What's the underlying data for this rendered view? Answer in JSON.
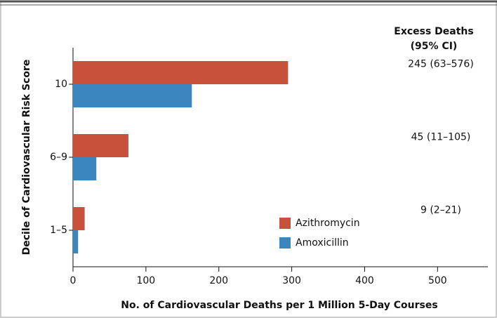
{
  "chart_data": {
    "type": "hbar",
    "categories": [
      "10",
      "6–9",
      "1–5"
    ],
    "series": [
      {
        "name": "Azithromycin",
        "color": "#c8513c",
        "values": [
          295,
          76,
          16
        ]
      },
      {
        "name": "Amoxicillin",
        "color": "#3b86bf",
        "values": [
          163,
          32,
          7
        ]
      }
    ],
    "xlim": [
      0,
      569
    ],
    "xticks": [
      0,
      100,
      200,
      300,
      400,
      500
    ],
    "xlabel": "No. of Cardiovascular Deaths per 1 Million 5-Day Courses",
    "ylabel": "Decile of Cardiovascular Risk Score",
    "annotation_title": [
      "Excess Deaths",
      "(95% CI)"
    ],
    "annotations": [
      "245 (63–576)",
      "45 (11–105)",
      "9 (2–21)"
    ],
    "legend": "lower-center"
  }
}
